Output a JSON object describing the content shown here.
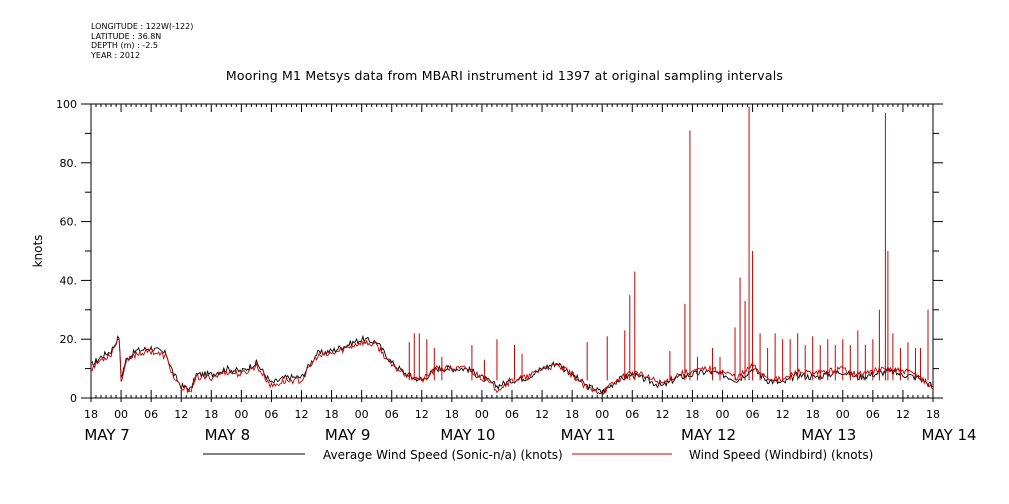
{
  "meta": {
    "longitude": "LONGITUDE : 122W(-122)",
    "latitude": "LATITUDE : 36.8N",
    "depth": "DEPTH (m) : -2.5",
    "year": "YEAR : 2012"
  },
  "chart_data": {
    "type": "line",
    "title": "Mooring M1 Metsys data from MBARI instrument id 1397 at original sampling intervals",
    "ylabel": "knots",
    "xlabel": "",
    "ylim": [
      0,
      100
    ],
    "y_ticks": [
      "0",
      "20.",
      "40.",
      "60.",
      "80.",
      "100"
    ],
    "x_tick_labels": [
      "18",
      "00",
      "06",
      "12",
      "18",
      "00",
      "06",
      "12",
      "18",
      "00",
      "06",
      "12",
      "18",
      "00",
      "06",
      "12",
      "18",
      "00",
      "06",
      "12",
      "18",
      "00",
      "06",
      "12",
      "18",
      "00",
      "06",
      "12",
      "18"
    ],
    "day_labels": [
      "MAY  7",
      "MAY  8",
      "MAY  9",
      "MAY 10",
      "MAY 11",
      "MAY 12",
      "MAY 13",
      "MAY 14"
    ],
    "x_range_hours": [
      0,
      168
    ],
    "x_description": "hours since 18:00 May 6 2012",
    "grid": false,
    "legend": "bottom",
    "colors": {
      "average": "#000000",
      "windbird": "#cc0000"
    },
    "series": [
      {
        "name": "Average Wind Speed (Sonic-n/a) (knots)",
        "x": [
          0,
          2,
          4,
          5.6,
          6,
          7,
          9,
          12,
          15,
          16.5,
          18,
          20,
          21,
          24,
          27,
          30,
          33,
          36,
          39,
          42,
          45,
          48,
          51,
          54,
          57,
          60,
          63,
          66,
          69,
          72,
          75,
          78,
          81,
          84,
          87,
          90,
          93,
          96,
          99,
          102,
          105,
          108,
          111,
          114,
          117,
          120,
          123,
          126,
          129,
          132,
          135,
          138,
          141,
          144,
          147,
          150,
          153,
          156,
          159,
          162,
          165,
          168
        ],
        "y": [
          11,
          14,
          16,
          21,
          7,
          13,
          16,
          17,
          15,
          8,
          4,
          3,
          8,
          8,
          10,
          9,
          12,
          5,
          7,
          7,
          15,
          16,
          18,
          20,
          19,
          12,
          8,
          6,
          10,
          10,
          10,
          7,
          4,
          6,
          7,
          10,
          12,
          8,
          4,
          2,
          6,
          8,
          6,
          4,
          7,
          8,
          9,
          8,
          6,
          10,
          6,
          5,
          8,
          7,
          8,
          9,
          7,
          8,
          9,
          8,
          7,
          4
        ]
      },
      {
        "name": "Wind Speed (Windbird) (knots)",
        "x": [
          0,
          2,
          4,
          5.6,
          6,
          7,
          9,
          12,
          15,
          16.5,
          18,
          20,
          21,
          24,
          27,
          30,
          33,
          36,
          39,
          42,
          45,
          48,
          51,
          54,
          57,
          60,
          63,
          66,
          69,
          72,
          75,
          78,
          81,
          84,
          87,
          90,
          93,
          96,
          99,
          102,
          105,
          108,
          111,
          114,
          117,
          120,
          123,
          126,
          129,
          132,
          135,
          138,
          141,
          144,
          147,
          150,
          153,
          156,
          159,
          162,
          165,
          168
        ],
        "y": [
          10,
          13,
          15,
          21,
          6,
          12,
          15,
          16,
          14,
          7,
          3,
          3,
          7,
          7,
          9,
          8,
          11,
          4,
          6,
          6,
          14,
          15,
          17,
          19,
          18,
          11,
          8,
          6,
          10,
          10,
          10,
          7,
          3,
          6,
          7,
          10,
          11,
          8,
          3,
          2,
          6,
          9,
          7,
          5,
          8,
          9,
          10,
          9,
          7,
          11,
          7,
          6,
          9,
          8,
          9,
          10,
          8,
          9,
          10,
          9,
          8,
          3
        ],
        "spikes": [
          {
            "x": 63.5,
            "y": 19
          },
          {
            "x": 64.5,
            "y": 22
          },
          {
            "x": 65.5,
            "y": 22
          },
          {
            "x": 67,
            "y": 20
          },
          {
            "x": 68.5,
            "y": 17
          },
          {
            "x": 70,
            "y": 14
          },
          {
            "x": 76,
            "y": 18
          },
          {
            "x": 78.5,
            "y": 13
          },
          {
            "x": 81,
            "y": 20
          },
          {
            "x": 84.5,
            "y": 18
          },
          {
            "x": 86,
            "y": 15
          },
          {
            "x": 99,
            "y": 19
          },
          {
            "x": 103,
            "y": 21
          },
          {
            "x": 106.5,
            "y": 23
          },
          {
            "x": 107.5,
            "y": 35
          },
          {
            "x": 108.5,
            "y": 43
          },
          {
            "x": 115.5,
            "y": 16
          },
          {
            "x": 118.5,
            "y": 32
          },
          {
            "x": 119.5,
            "y": 91
          },
          {
            "x": 121,
            "y": 14
          },
          {
            "x": 124,
            "y": 17
          },
          {
            "x": 125.5,
            "y": 14
          },
          {
            "x": 128.5,
            "y": 24
          },
          {
            "x": 129.5,
            "y": 41
          },
          {
            "x": 130.5,
            "y": 33
          },
          {
            "x": 131.3,
            "y": 99
          },
          {
            "x": 132,
            "y": 50
          },
          {
            "x": 133.5,
            "y": 22
          },
          {
            "x": 135,
            "y": 17
          },
          {
            "x": 136.5,
            "y": 22
          },
          {
            "x": 138,
            "y": 20
          },
          {
            "x": 139.5,
            "y": 20
          },
          {
            "x": 141,
            "y": 22
          },
          {
            "x": 142.5,
            "y": 18
          },
          {
            "x": 144,
            "y": 21
          },
          {
            "x": 145.5,
            "y": 18
          },
          {
            "x": 147,
            "y": 20
          },
          {
            "x": 148.5,
            "y": 18
          },
          {
            "x": 150,
            "y": 20
          },
          {
            "x": 151.5,
            "y": 18
          },
          {
            "x": 153,
            "y": 23
          },
          {
            "x": 154.5,
            "y": 18
          },
          {
            "x": 156,
            "y": 20
          },
          {
            "x": 157.3,
            "y": 30
          },
          {
            "x": 158.5,
            "y": 97
          },
          {
            "x": 159,
            "y": 50
          },
          {
            "x": 160,
            "y": 22
          },
          {
            "x": 161.5,
            "y": 17
          },
          {
            "x": 163,
            "y": 19
          },
          {
            "x": 164.5,
            "y": 17
          },
          {
            "x": 165.5,
            "y": 17
          },
          {
            "x": 167,
            "y": 30
          }
        ]
      }
    ]
  }
}
